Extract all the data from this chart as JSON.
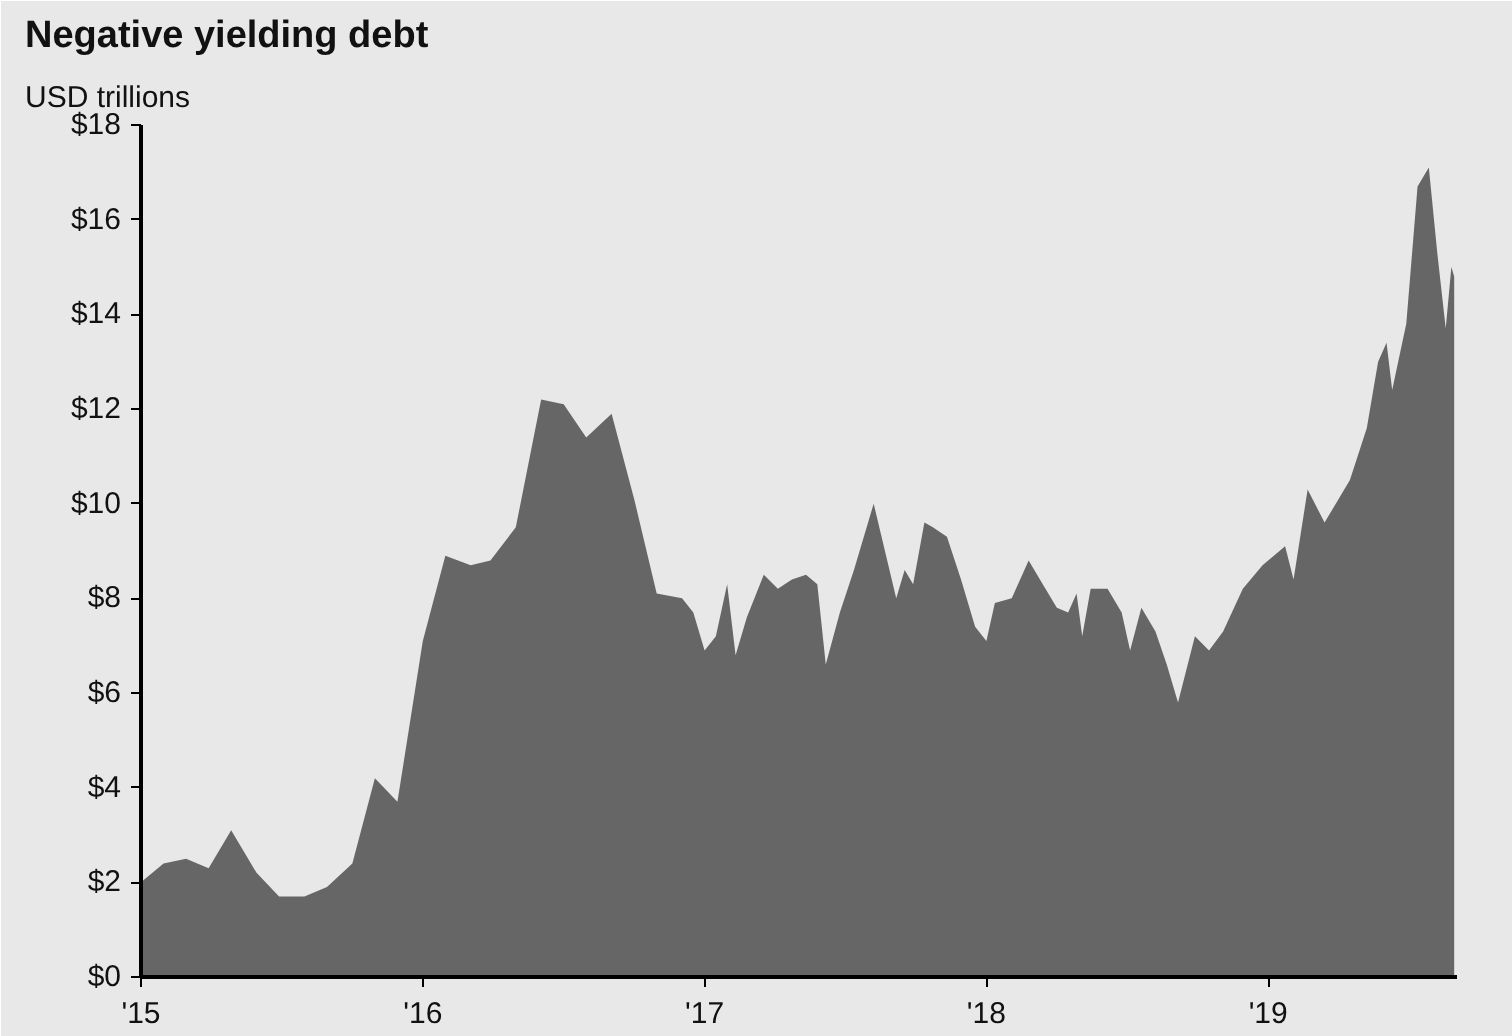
{
  "chart_data": {
    "type": "area",
    "title": "Negative yielding debt",
    "subtitle": "USD trillions",
    "x": [
      2015.0,
      2015.08,
      2015.16,
      2015.24,
      2015.32,
      2015.41,
      2015.49,
      2015.58,
      2015.66,
      2015.75,
      2015.83,
      2015.91,
      2016.0,
      2016.08,
      2016.17,
      2016.24,
      2016.33,
      2016.42,
      2016.5,
      2016.58,
      2016.67,
      2016.75,
      2016.83,
      2016.92,
      2016.96,
      2017.0,
      2017.04,
      2017.08,
      2017.11,
      2017.15,
      2017.21,
      2017.26,
      2017.31,
      2017.36,
      2017.4,
      2017.43,
      2017.48,
      2017.53,
      2017.6,
      2017.64,
      2017.68,
      2017.71,
      2017.74,
      2017.78,
      2017.81,
      2017.86,
      2017.91,
      2017.96,
      2018.0,
      2018.03,
      2018.09,
      2018.15,
      2018.2,
      2018.25,
      2018.29,
      2018.32,
      2018.34,
      2018.37,
      2018.43,
      2018.48,
      2018.51,
      2018.55,
      2018.6,
      2018.64,
      2018.68,
      2018.74,
      2018.79,
      2018.84,
      2018.91,
      2018.98,
      2019.06,
      2019.09,
      2019.14,
      2019.2,
      2019.29,
      2019.35,
      2019.39,
      2019.42,
      2019.44,
      2019.49,
      2019.53,
      2019.57,
      2019.6,
      2019.63,
      2019.65,
      2019.66
    ],
    "series": [
      {
        "color": "#666666",
        "values": [
          2.0,
          2.4,
          2.5,
          2.3,
          3.1,
          2.2,
          1.7,
          1.7,
          1.9,
          2.4,
          4.2,
          3.7,
          7.1,
          8.9,
          8.7,
          8.8,
          9.5,
          12.2,
          12.1,
          11.4,
          11.9,
          10.1,
          8.1,
          8.0,
          7.7,
          6.9,
          7.2,
          8.3,
          6.8,
          7.6,
          8.5,
          8.2,
          8.4,
          8.5,
          8.3,
          6.6,
          7.7,
          8.6,
          10.0,
          9.0,
          8.0,
          8.6,
          8.3,
          9.6,
          9.5,
          9.3,
          8.4,
          7.4,
          7.1,
          7.9,
          8.0,
          8.8,
          8.3,
          7.8,
          7.7,
          8.1,
          7.2,
          8.2,
          8.2,
          7.7,
          6.9,
          7.8,
          7.3,
          6.6,
          5.8,
          7.2,
          6.9,
          7.3,
          8.2,
          8.7,
          9.1,
          8.4,
          10.3,
          9.6,
          10.5,
          11.6,
          13.0,
          13.4,
          12.4,
          13.8,
          16.7,
          17.1,
          15.3,
          13.7,
          15.0,
          14.8
        ]
      }
    ],
    "xlim": [
      2015.0,
      2019.67
    ],
    "ylim": [
      0,
      18
    ],
    "xticks": [
      {
        "value": 2015,
        "label": "'15"
      },
      {
        "value": 2016,
        "label": "'16"
      },
      {
        "value": 2017,
        "label": "'17"
      },
      {
        "value": 2018,
        "label": "'18"
      },
      {
        "value": 2019,
        "label": "'19"
      }
    ],
    "yticks": [
      {
        "value": 0,
        "label": "$0"
      },
      {
        "value": 2,
        "label": "$2"
      },
      {
        "value": 4,
        "label": "$4"
      },
      {
        "value": 6,
        "label": "$6"
      },
      {
        "value": 8,
        "label": "$8"
      },
      {
        "value": 10,
        "label": "$10"
      },
      {
        "value": 12,
        "label": "$12"
      },
      {
        "value": 14,
        "label": "$14"
      },
      {
        "value": 16,
        "label": "$16"
      },
      {
        "value": 18,
        "label": "$18"
      }
    ]
  }
}
